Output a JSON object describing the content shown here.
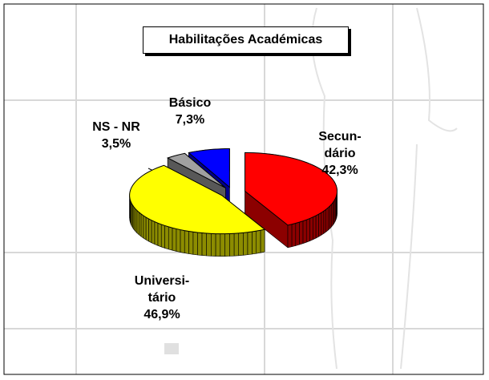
{
  "chart_data": {
    "type": "pie",
    "title": "Habilitações Académicas",
    "categories": [
      "Secun-dário",
      "Universi-tário",
      "NS - NR",
      "Básico"
    ],
    "values": [
      42.3,
      46.9,
      3.5,
      7.3
    ],
    "value_labels": [
      "42,3%",
      "46,9%",
      "3,5%",
      "7,3%"
    ],
    "colors": [
      "#ff0000",
      "#ffff00",
      "#a0a0a0",
      "#0000ff"
    ]
  }
}
